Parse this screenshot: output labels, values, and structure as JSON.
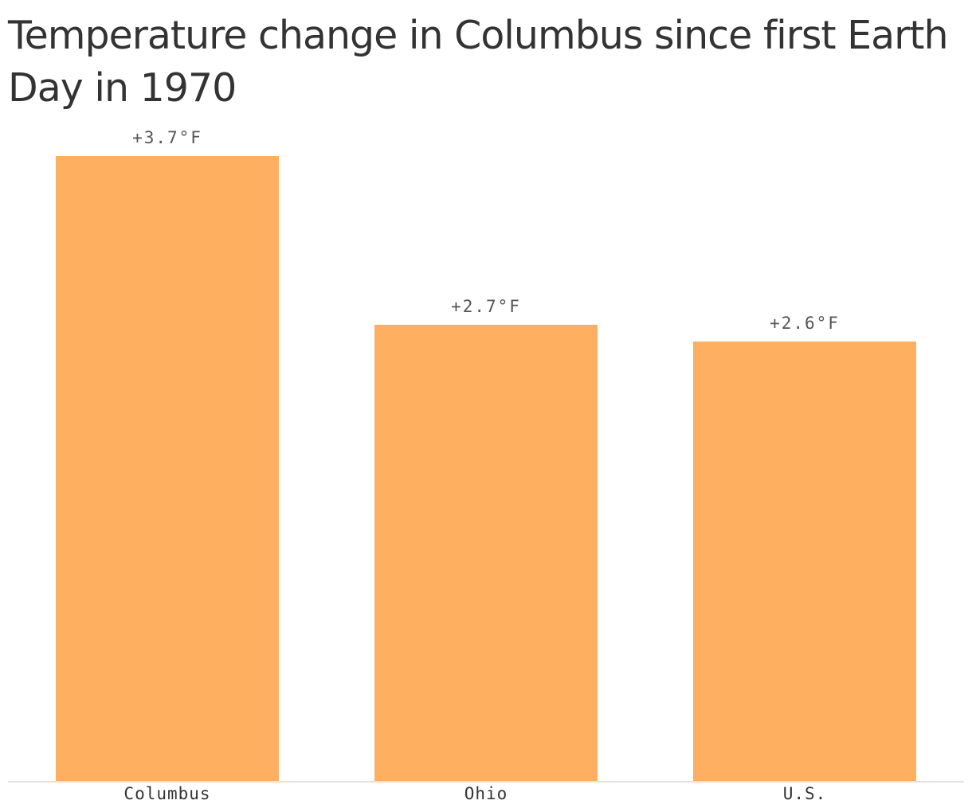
{
  "title": "Temperature change in Columbus since first Earth Day in 1970",
  "colors": {
    "bar": "#ffaf5f",
    "title": "#333333",
    "label": "#555555",
    "axis": "#e2e2e2"
  },
  "bars": [
    {
      "category": "Columbus",
      "value": 3.7,
      "label": "+3.7°F"
    },
    {
      "category": "Ohio",
      "value": 2.7,
      "label": "+2.7°F"
    },
    {
      "category": "U.S.",
      "value": 2.6,
      "label": "+2.6°F"
    }
  ],
  "chart_data": {
    "type": "bar",
    "title": "Temperature change in Columbus since first Earth Day in 1970",
    "categories": [
      "Columbus",
      "Ohio",
      "U.S."
    ],
    "values": [
      3.7,
      2.7,
      2.6
    ],
    "data_labels": [
      "+3.7°F",
      "+2.7°F",
      "+2.6°F"
    ],
    "xlabel": "",
    "ylabel": "",
    "unit": "°F",
    "ylim": [
      0,
      3.7
    ],
    "grid": false,
    "legend": null
  }
}
